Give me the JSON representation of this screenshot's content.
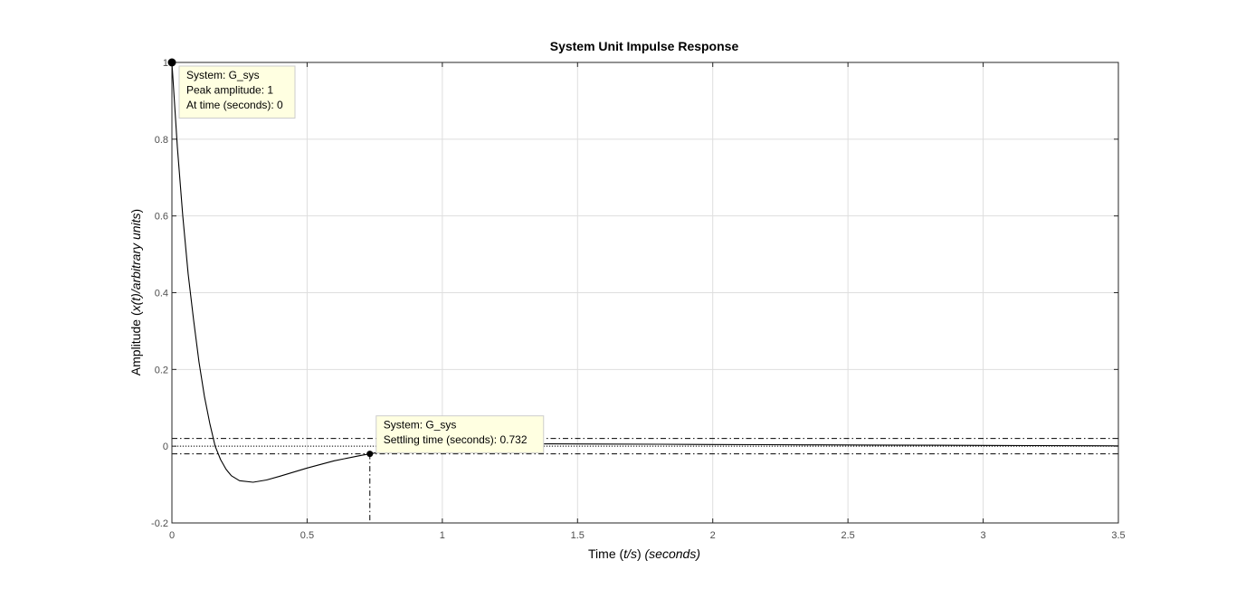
{
  "chart_data": {
    "type": "line",
    "title": "System Unit Impulse Response",
    "xlabel_parts": [
      {
        "text": "Time (",
        "italic": false
      },
      {
        "text": "t/s",
        "italic": true
      },
      {
        "text": ") ",
        "italic": false
      },
      {
        "text": "(seconds)",
        "italic": true
      }
    ],
    "ylabel_parts": [
      {
        "text": "Amplitude (",
        "italic": false
      },
      {
        "text": "x(t)/arbitrary units",
        "italic": true
      },
      {
        "text": ")",
        "italic": false
      }
    ],
    "xlim": [
      0,
      3.5
    ],
    "ylim": [
      -0.2,
      1
    ],
    "x_ticks": [
      0,
      0.5,
      1,
      1.5,
      2,
      2.5,
      3,
      3.5
    ],
    "x_tick_labels": [
      "0",
      "0.5",
      "1",
      "1.5",
      "2",
      "2.5",
      "3",
      "3.5"
    ],
    "y_ticks": [
      -0.2,
      0,
      0.2,
      0.4,
      0.6,
      0.8,
      1
    ],
    "y_tick_labels": [
      "-0.2",
      "0",
      "0.2",
      "0.4",
      "0.6",
      "0.8",
      "1"
    ],
    "grid": true,
    "series": [
      {
        "x": [
          0,
          0.02,
          0.04,
          0.06,
          0.08,
          0.1,
          0.12,
          0.14,
          0.16,
          0.18,
          0.2,
          0.22,
          0.25,
          0.3,
          0.35,
          0.4,
          0.5,
          0.6,
          0.7,
          0.732,
          0.8,
          0.9,
          1.0,
          1.2,
          1.4,
          1.6,
          1.8,
          2.0,
          2.2,
          2.4,
          2.6,
          2.8,
          3.0,
          3.2,
          3.4,
          3.5
        ],
        "y": [
          1.0,
          0.78,
          0.6,
          0.45,
          0.33,
          0.22,
          0.13,
          0.06,
          0.0,
          -0.035,
          -0.06,
          -0.077,
          -0.09,
          -0.094,
          -0.088,
          -0.078,
          -0.057,
          -0.038,
          -0.024,
          -0.02,
          -0.012,
          -0.004,
          0.001,
          0.005,
          0.006,
          0.0055,
          0.005,
          0.0045,
          0.004,
          0.0035,
          0.003,
          0.0025,
          0.002,
          0.0015,
          0.001,
          0.0008
        ],
        "color": "#000000"
      }
    ],
    "settling_band": [
      -0.02,
      0.02
    ],
    "annotations": [
      {
        "x": 0,
        "y": 1,
        "lines": [
          "System: G_sys",
          "Peak amplitude: 1",
          "At time (seconds): 0"
        ]
      },
      {
        "x": 0.732,
        "y": -0.02,
        "lines": [
          "System: G_sys",
          "Settling time (seconds): 0.732"
        ]
      }
    ],
    "colors": {
      "grid": "#dedede",
      "axis": "#262626",
      "tick_label": "#4d4d4d",
      "datatip_bg": "#ffffe1",
      "datatip_border": "#cccccc"
    }
  }
}
